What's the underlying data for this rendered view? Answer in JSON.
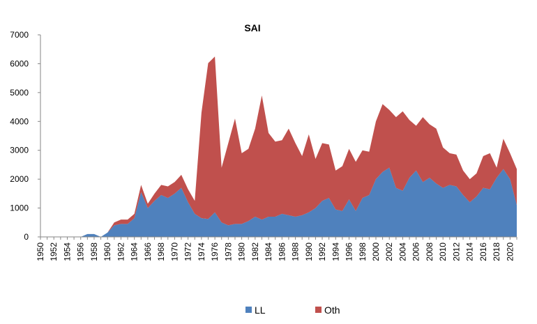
{
  "chart_data": {
    "type": "area",
    "stacked": true,
    "title": "SAI",
    "xlabel": "",
    "ylabel": "",
    "ylim": [
      0,
      7000
    ],
    "yticks": [
      0,
      1000,
      2000,
      3000,
      4000,
      5000,
      6000,
      7000
    ],
    "x_range": [
      1950,
      2021
    ],
    "xticks": [
      1950,
      1952,
      1954,
      1956,
      1958,
      1960,
      1962,
      1964,
      1966,
      1968,
      1970,
      1972,
      1974,
      1976,
      1978,
      1980,
      1982,
      1984,
      1986,
      1988,
      1990,
      1992,
      1994,
      1996,
      1998,
      2000,
      2002,
      2004,
      2006,
      2008,
      2010,
      2012,
      2014,
      2016,
      2018,
      2020
    ],
    "grid": false,
    "legend_position": "bottom",
    "x": [
      1950,
      1951,
      1952,
      1953,
      1954,
      1955,
      1956,
      1957,
      1958,
      1959,
      1960,
      1961,
      1962,
      1963,
      1964,
      1965,
      1966,
      1967,
      1968,
      1969,
      1970,
      1971,
      1972,
      1973,
      1974,
      1975,
      1976,
      1977,
      1978,
      1979,
      1980,
      1981,
      1982,
      1983,
      1984,
      1985,
      1986,
      1987,
      1988,
      1989,
      1990,
      1991,
      1992,
      1993,
      1994,
      1995,
      1996,
      1997,
      1998,
      1999,
      2000,
      2001,
      2002,
      2003,
      2004,
      2005,
      2006,
      2007,
      2008,
      2009,
      2010,
      2011,
      2012,
      2013,
      2014,
      2015,
      2016,
      2017,
      2018,
      2019,
      2020,
      2021
    ],
    "series": [
      {
        "name": "LL",
        "color": "#4f81bd",
        "values": [
          0,
          0,
          0,
          0,
          0,
          0,
          0,
          100,
          100,
          0,
          150,
          400,
          450,
          450,
          650,
          1550,
          1000,
          1250,
          1450,
          1350,
          1500,
          1700,
          1200,
          800,
          650,
          620,
          850,
          500,
          400,
          450,
          450,
          550,
          700,
          600,
          700,
          700,
          800,
          750,
          700,
          750,
          850,
          1000,
          1250,
          1350,
          950,
          900,
          1300,
          900,
          1350,
          1450,
          2000,
          2250,
          2400,
          1700,
          1600,
          2050,
          2300,
          1900,
          2050,
          1850,
          1700,
          1800,
          1750,
          1450,
          1200,
          1400,
          1700,
          1650,
          2050,
          2350,
          2000,
          1100
        ]
      },
      {
        "name": "Oth",
        "color": "#c0504d",
        "values": [
          0,
          0,
          0,
          0,
          0,
          0,
          0,
          0,
          0,
          0,
          0,
          100,
          150,
          150,
          150,
          250,
          150,
          250,
          350,
          400,
          400,
          450,
          450,
          450,
          3650,
          5400,
          5400,
          1900,
          2850,
          3650,
          2450,
          2500,
          3050,
          4300,
          2900,
          2600,
          2550,
          3000,
          2550,
          2050,
          2700,
          1700,
          2000,
          1850,
          1350,
          1550,
          1750,
          1700,
          1650,
          1500,
          2000,
          2350,
          2000,
          2450,
          2750,
          2000,
          1550,
          2250,
          1850,
          1900,
          1400,
          1100,
          1100,
          850,
          800,
          800,
          1100,
          1250,
          350,
          1050,
          900,
          1250
        ]
      }
    ]
  }
}
